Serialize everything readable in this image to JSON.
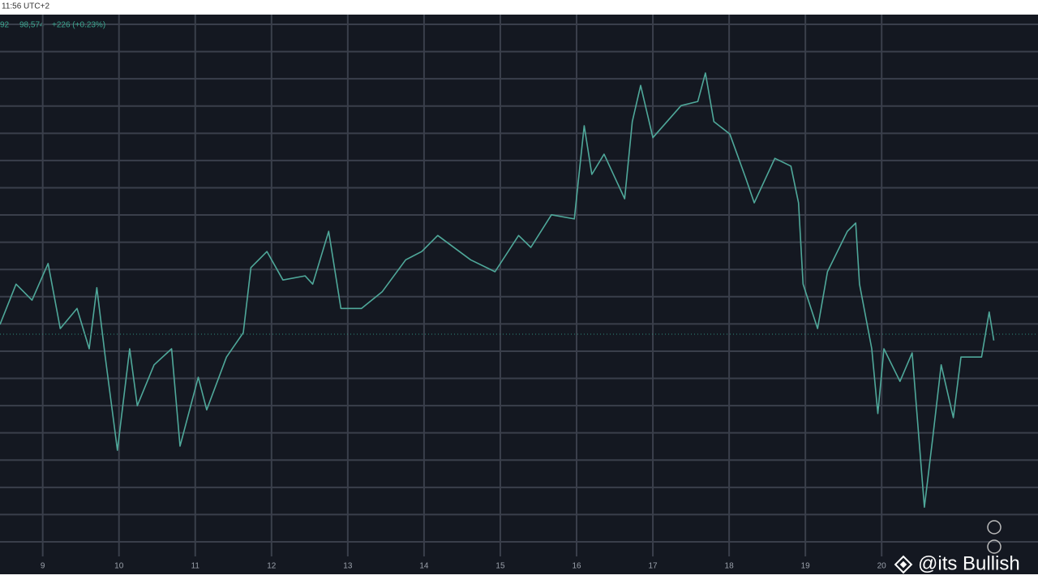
{
  "chart_data": {
    "type": "line",
    "header": "11:56 UTC+2",
    "legend_values": [
      "92",
      "98,574",
      "+226 (+0.23%)"
    ],
    "watermark": "@its Bullish",
    "xlim": [
      8.44,
      22.05
    ],
    "xticks": [
      9,
      10,
      11,
      12,
      13,
      14,
      15,
      16,
      17,
      18,
      19,
      20
    ],
    "ylim": [
      0,
      100
    ],
    "grid": true,
    "series": [
      {
        "color": "#4fa89a",
        "x": [
          8.44,
          8.65,
          8.86,
          9.07,
          9.23,
          9.45,
          9.61,
          9.71,
          9.82,
          9.98,
          10.14,
          10.24,
          10.46,
          10.69,
          10.8,
          11.04,
          11.15,
          11.41,
          11.63,
          11.73,
          11.94,
          12.15,
          12.44,
          12.54,
          12.75,
          12.91,
          13.18,
          13.45,
          13.76,
          13.97,
          14.18,
          14.61,
          14.93,
          15.24,
          15.4,
          15.67,
          15.97,
          16.1,
          16.2,
          16.36,
          16.63,
          16.73,
          16.84,
          17.0,
          17.37,
          17.59,
          17.69,
          17.8,
          18.01,
          18.22,
          18.33,
          18.6,
          18.81,
          18.91,
          18.97,
          19.16,
          19.29,
          19.55,
          19.66,
          19.71,
          19.87,
          19.95,
          20.03,
          20.24,
          20.4,
          20.56,
          20.67,
          20.78,
          20.94,
          21.04,
          21.31,
          21.41,
          21.47
        ],
        "values": [
          42,
          49.8,
          46.7,
          53.8,
          41.2,
          45.1,
          37.3,
          49.1,
          35.7,
          17.7,
          37.3,
          26.3,
          34.2,
          37.3,
          18.5,
          31.8,
          25.5,
          35.7,
          40.4,
          53,
          56.1,
          50.6,
          51.4,
          49.8,
          60,
          45.1,
          45.1,
          48.3,
          54.5,
          56.1,
          59.2,
          54.5,
          52.2,
          59.2,
          56.9,
          63.2,
          62.4,
          80.4,
          71,
          74.9,
          66.3,
          81.2,
          88.2,
          78.1,
          84.3,
          85.1,
          90.6,
          81.2,
          78.8,
          70.2,
          65.5,
          74.1,
          72.6,
          65.5,
          49.8,
          41.2,
          52.2,
          60,
          61.6,
          49.8,
          37.3,
          24.8,
          37.3,
          31,
          36.5,
          6.7,
          20.1,
          34.2,
          24,
          35.7,
          35.7,
          44.4,
          38.9
        ]
      }
    ]
  }
}
